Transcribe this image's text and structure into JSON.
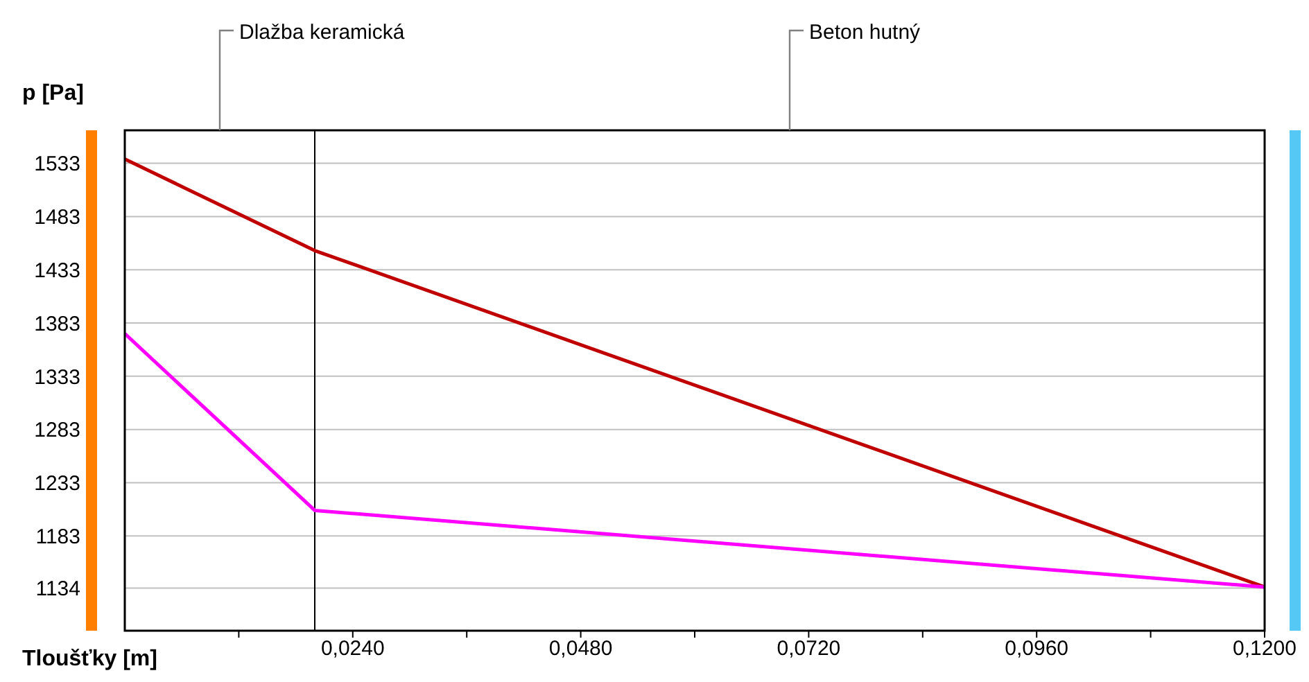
{
  "chart_data": {
    "type": "line",
    "xlabel": "Tloušťky [m]",
    "ylabel": "p [Pa]",
    "xlim": [
      0,
      0.12
    ],
    "ylim": [
      1094,
      1564
    ],
    "xticks": [
      {
        "value": 0.012,
        "label": null
      },
      {
        "value": 0.024,
        "label": "0,0240"
      },
      {
        "value": 0.036,
        "label": null
      },
      {
        "value": 0.048,
        "label": "0,0480"
      },
      {
        "value": 0.06,
        "label": null
      },
      {
        "value": 0.072,
        "label": "0,0720"
      },
      {
        "value": 0.084,
        "label": null
      },
      {
        "value": 0.096,
        "label": "0,0960"
      },
      {
        "value": 0.108,
        "label": null
      },
      {
        "value": 0.12,
        "label": "0,1200"
      }
    ],
    "yticks": [
      1134,
      1183,
      1233,
      1283,
      1333,
      1383,
      1433,
      1483,
      1533
    ],
    "grid": "y",
    "marker": "none",
    "line_style": "solid",
    "series": [
      {
        "color": "#c00000",
        "x": [
          0,
          0.02,
          0.12
        ],
        "values": [
          1537,
          1451,
          1135
        ]
      },
      {
        "color": "#ff00ff",
        "x": [
          0,
          0.02,
          0.12
        ],
        "values": [
          1373,
          1207,
          1135
        ]
      }
    ],
    "ref_lines": [
      {
        "axis": "x",
        "value": 0.02,
        "color": "#000000"
      }
    ],
    "annotations": [
      "Dlažba keramická",
      "Beton hutný"
    ]
  }
}
